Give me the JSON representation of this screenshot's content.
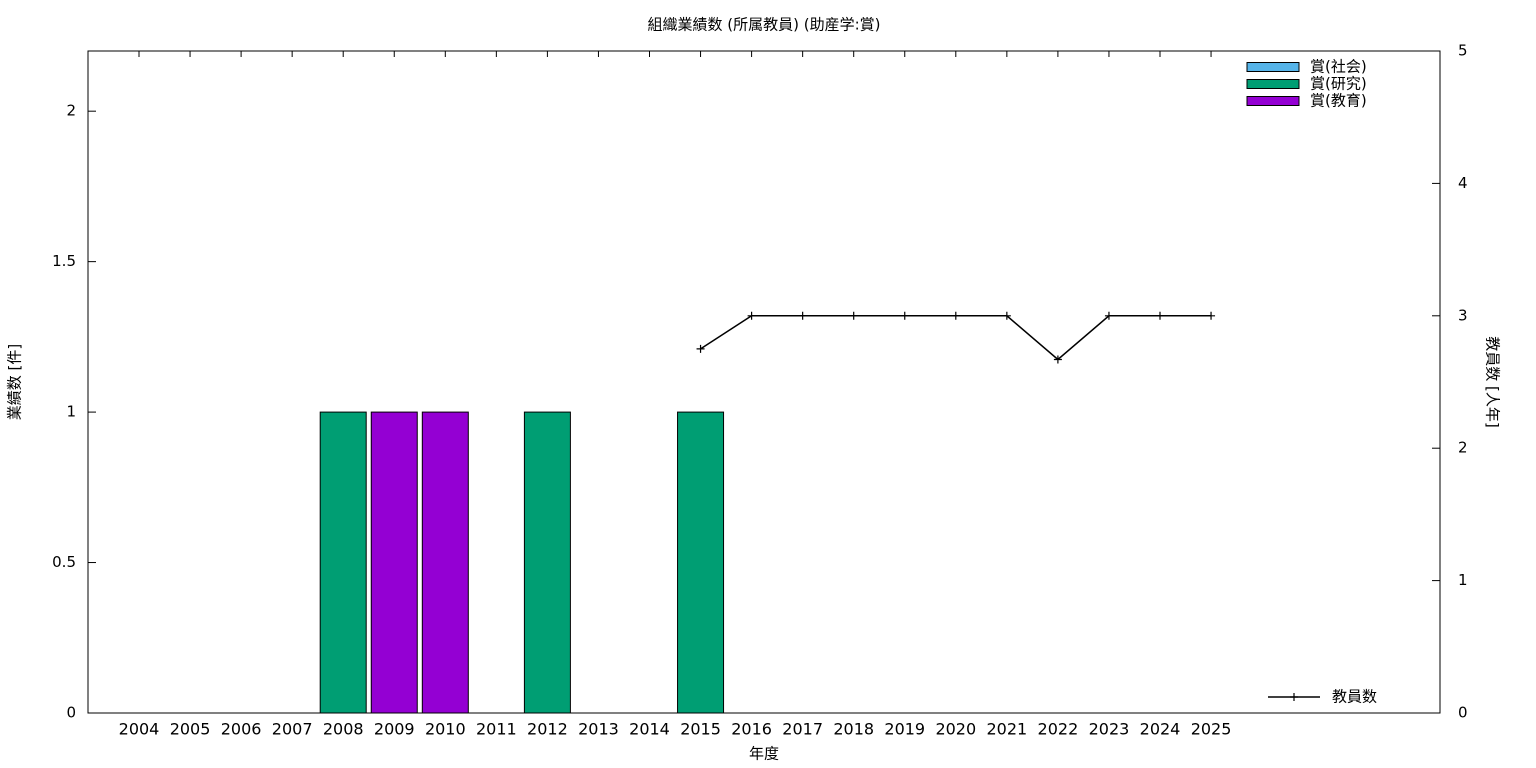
{
  "chart_data": {
    "type": "bar",
    "title": "組織業績数 (所属教員) (助産学:賞)",
    "x_label": "年度",
    "y_label": "業績数 [件]",
    "y2_label": "教員数 [人年]",
    "categories": [
      "2004",
      "2005",
      "2006",
      "2007",
      "2008",
      "2009",
      "2010",
      "2011",
      "2012",
      "2013",
      "2014",
      "2015",
      "2016",
      "2017",
      "2018",
      "2019",
      "2020",
      "2021",
      "2022",
      "2023",
      "2024",
      "2025"
    ],
    "stacked": true,
    "series": [
      {
        "name": "賞(社会)",
        "color": "#56b4e9",
        "values": [
          0,
          0,
          0,
          0,
          0,
          0,
          0,
          0,
          0,
          0,
          0,
          0,
          0,
          0,
          0,
          0,
          0,
          0,
          0,
          0,
          0,
          0
        ]
      },
      {
        "name": "賞(研究)",
        "color": "#009e73",
        "values": [
          0,
          0,
          0,
          0,
          1,
          0,
          0,
          0,
          1,
          0,
          0,
          1,
          0,
          0,
          0,
          0,
          0,
          0,
          0,
          0,
          0,
          0
        ]
      },
      {
        "name": "賞(教育)",
        "color": "#9400d3",
        "values": [
          0,
          0,
          0,
          0,
          0,
          1,
          1,
          0,
          0,
          0,
          0,
          0,
          0,
          0,
          0,
          0,
          0,
          0,
          0,
          0,
          0,
          0
        ]
      },
      {
        "name": "教員数",
        "type": "line",
        "axis": "y2",
        "color": "#000000",
        "values": [
          null,
          null,
          null,
          null,
          null,
          null,
          null,
          null,
          null,
          null,
          null,
          2.75,
          3,
          3,
          3,
          3,
          3,
          3,
          2.67,
          3,
          3,
          3
        ]
      }
    ],
    "ylim": [
      0,
      2.2
    ],
    "yticks": [
      0,
      0.5,
      1,
      1.5,
      2
    ],
    "y2lim": [
      0,
      5
    ],
    "y2ticks": [
      0,
      1,
      2,
      3,
      4,
      5
    ],
    "grid": false
  }
}
